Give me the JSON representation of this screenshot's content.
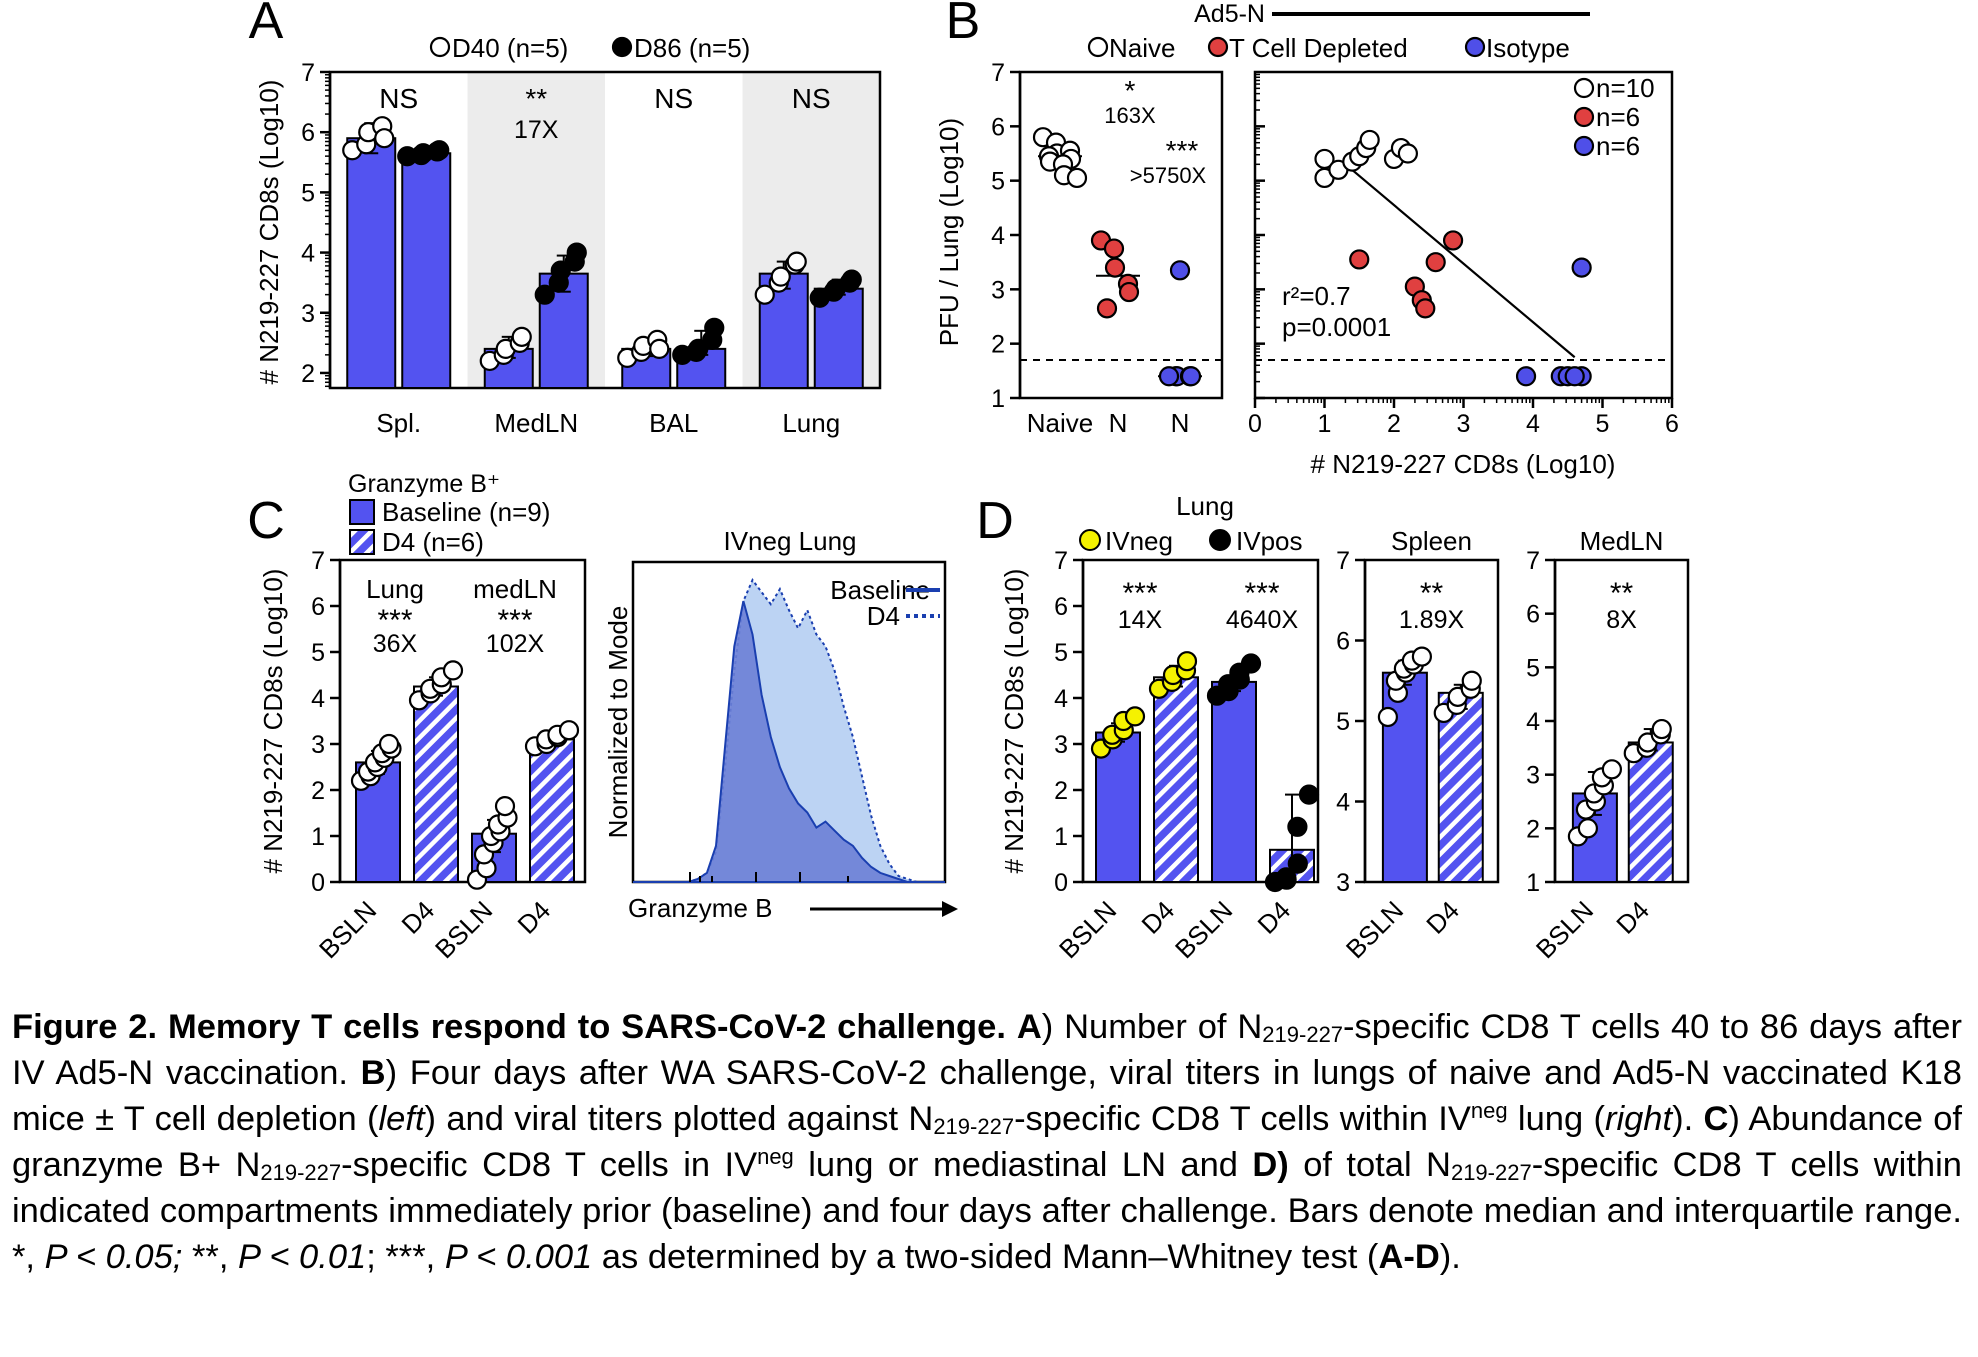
{
  "colors": {
    "bar": "#5353f0",
    "yellow": "#f5f200",
    "red": "#e04040",
    "blue": "#4f4fe8",
    "shade": "#ececec",
    "hist_base": "#6b7fd6",
    "hist_d4": "#bcd3f3",
    "line": "#1a3fb0"
  },
  "chart_data": [
    {
      "panel": "A",
      "type": "bar",
      "legend": [
        "D40 (n=5)",
        "D86 (n=5)"
      ],
      "ylabel": "# N219-227 CD8s (Log10)",
      "ylim": [
        1.75,
        7
      ],
      "yticks": [
        2,
        3,
        4,
        5,
        6,
        7
      ],
      "categories": [
        "Spl.",
        "MedLN",
        "BAL",
        "Lung"
      ],
      "annotations": [
        [
          "NS",
          ""
        ],
        [
          "**",
          "17X"
        ],
        [
          "NS",
          ""
        ],
        [
          "NS",
          ""
        ]
      ],
      "series": [
        {
          "name": "D40 (n=5)",
          "values": [
            5.9,
            2.4,
            2.4,
            3.65
          ],
          "errlow": [
            5.65,
            2.25,
            2.28,
            3.4
          ],
          "errhigh": [
            6.15,
            2.6,
            2.55,
            3.85
          ],
          "points": [
            [
              5.7,
              5.8,
              6.0,
              6.1,
              5.9
            ],
            [
              2.2,
              2.3,
              2.4,
              2.5,
              2.6
            ],
            [
              2.25,
              2.35,
              2.45,
              2.55,
              2.4
            ],
            [
              3.3,
              3.5,
              3.6,
              3.8,
              3.85
            ]
          ]
        },
        {
          "name": "D86 (n=5)",
          "values": [
            5.65,
            3.65,
            2.4,
            3.4
          ],
          "errlow": [
            5.6,
            3.35,
            2.3,
            3.3
          ],
          "errhigh": [
            5.7,
            3.95,
            2.7,
            3.55
          ],
          "points": [
            [
              5.6,
              5.62,
              5.65,
              5.68,
              5.7
            ],
            [
              3.3,
              3.5,
              3.7,
              3.85,
              4.0
            ],
            [
              2.3,
              2.35,
              2.4,
              2.55,
              2.75
            ],
            [
              3.25,
              3.35,
              3.4,
              3.5,
              3.55
            ]
          ]
        }
      ]
    },
    {
      "panel": "B-left",
      "type": "scatter",
      "header": "Ad5-N",
      "legend": [
        "Naive",
        "T Cell Depleted",
        "Isotype"
      ],
      "ylabel": "PFU / Lung (Log10)",
      "ylim": [
        1,
        7
      ],
      "yticks": [
        1,
        2,
        3,
        4,
        5,
        6,
        7
      ],
      "categories": [
        "Naive",
        "N",
        "N"
      ],
      "threshold": 1.7,
      "annotations": [
        [
          "*",
          "163X"
        ],
        [
          "***",
          ">5750X"
        ]
      ],
      "groups": [
        {
          "name": "Naive",
          "median": 5.45,
          "points": [
            5.8,
            5.7,
            5.5,
            5.55,
            5.4,
            5.45,
            5.35,
            5.3,
            5.1,
            5.05
          ]
        },
        {
          "name": "T Cell Depleted",
          "median": 3.25,
          "points": [
            3.9,
            3.75,
            3.4,
            3.1,
            2.95,
            2.65
          ]
        },
        {
          "name": "Isotype",
          "median": 1.4,
          "points": [
            3.35,
            1.4,
            1.4,
            1.4,
            1.4,
            1.4
          ]
        }
      ]
    },
    {
      "panel": "B-right",
      "type": "scatter",
      "xlabel": "# N219-227 CD8s (Log10)",
      "xlim": [
        0,
        6
      ],
      "ylim": [
        1,
        7
      ],
      "xticks": [
        0,
        1,
        2,
        3,
        4,
        5,
        6
      ],
      "threshold": 1.7,
      "stats": [
        "r²=0.7",
        "p=0.0001"
      ],
      "legend": [
        "n=10",
        "n=6",
        "n=6"
      ],
      "fit": [
        [
          1.35,
          5.25
        ],
        [
          4.6,
          1.75
        ]
      ],
      "series": [
        {
          "name": "Naive",
          "points": [
            [
              1.0,
              5.05
            ],
            [
              1.0,
              5.4
            ],
            [
              1.2,
              5.2
            ],
            [
              1.4,
              5.35
            ],
            [
              1.5,
              5.45
            ],
            [
              1.6,
              5.6
            ],
            [
              1.65,
              5.75
            ],
            [
              2.0,
              5.4
            ],
            [
              2.1,
              5.6
            ],
            [
              2.2,
              5.5
            ]
          ]
        },
        {
          "name": "T Cell Depleted",
          "points": [
            [
              1.5,
              3.55
            ],
            [
              2.3,
              3.05
            ],
            [
              2.4,
              2.8
            ],
            [
              2.45,
              2.65
            ],
            [
              2.6,
              3.5
            ],
            [
              2.85,
              3.9
            ]
          ]
        },
        {
          "name": "Isotype",
          "points": [
            [
              3.9,
              1.4
            ],
            [
              4.4,
              1.4
            ],
            [
              4.5,
              1.4
            ],
            [
              4.7,
              1.4
            ],
            [
              4.7,
              3.4
            ],
            [
              4.6,
              1.4
            ]
          ]
        }
      ]
    },
    {
      "panel": "C-left",
      "type": "bar",
      "legend_title": "Granzyme B⁺",
      "legend": [
        "Baseline (n=9)",
        "D4 (n=6)"
      ],
      "ylabel": "# N219-227 CD8s (Log10)",
      "ylim": [
        0,
        7
      ],
      "yticks": [
        0,
        1,
        2,
        3,
        4,
        5,
        6,
        7
      ],
      "categories": [
        "BSLN",
        "D4",
        "BSLN",
        "D4"
      ],
      "annotations": [
        [
          "Lung",
          "***",
          "36X"
        ],
        [
          "medLN",
          "***",
          "102X"
        ]
      ],
      "bars": [
        {
          "value": 2.6,
          "errlow": 2.35,
          "errhigh": 2.85,
          "hatched": false,
          "points": [
            2.2,
            2.3,
            2.4,
            2.5,
            2.6,
            2.7,
            2.8,
            2.9,
            3.0
          ]
        },
        {
          "value": 4.25,
          "errlow": 4.05,
          "errhigh": 4.45,
          "hatched": true,
          "points": [
            3.95,
            4.1,
            4.2,
            4.3,
            4.45,
            4.6
          ]
        },
        {
          "value": 1.05,
          "errlow": 0.65,
          "errhigh": 1.35,
          "hatched": false,
          "points": [
            0.05,
            0.3,
            0.6,
            0.85,
            1.0,
            1.1,
            1.25,
            1.4,
            1.65
          ]
        },
        {
          "value": 3.1,
          "errlow": 2.95,
          "errhigh": 3.25,
          "hatched": true,
          "points": [
            2.95,
            3.0,
            3.1,
            3.15,
            3.2,
            3.3
          ]
        }
      ]
    },
    {
      "panel": "C-right",
      "type": "area",
      "title": "IVneg Lung",
      "ylabel": "Normalized to Mode",
      "xlabel": "Granzyme B",
      "legend": [
        "Baseline",
        "D4"
      ],
      "series": [
        {
          "name": "Baseline",
          "values": [
            0,
            0,
            0,
            0,
            0,
            0,
            0.01,
            0.03,
            0.12,
            0.45,
            0.78,
            0.93,
            0.82,
            0.62,
            0.48,
            0.38,
            0.31,
            0.26,
            0.23,
            0.18,
            0.2,
            0.17,
            0.14,
            0.12,
            0.08,
            0.05,
            0.03,
            0.02,
            0.01,
            0,
            0,
            0,
            0
          ]
        },
        {
          "name": "D4",
          "values": [
            0,
            0,
            0,
            0,
            0,
            0,
            0.01,
            0.03,
            0.1,
            0.38,
            0.7,
            0.93,
            1.0,
            0.96,
            0.92,
            0.97,
            0.9,
            0.84,
            0.9,
            0.82,
            0.78,
            0.7,
            0.58,
            0.48,
            0.35,
            0.22,
            0.12,
            0.06,
            0.02,
            0.01,
            0,
            0,
            0
          ]
        }
      ]
    },
    {
      "panel": "D-left",
      "type": "bar",
      "title": "Lung",
      "legend": [
        "IVneg",
        "IVpos"
      ],
      "ylabel": "# N219-227 CD8s (Log10)",
      "ylim": [
        0,
        7
      ],
      "yticks": [
        0,
        1,
        2,
        3,
        4,
        5,
        6,
        7
      ],
      "categories": [
        "BSLN",
        "D4",
        "BSLN",
        "D4"
      ],
      "annotations": [
        [
          "***",
          "14X"
        ],
        [
          "***",
          "4640X"
        ]
      ],
      "bars": [
        {
          "value": 3.25,
          "errlow": 3.05,
          "errhigh": 3.45,
          "hatched": false,
          "dot": "yellow",
          "points": [
            2.9,
            3.1,
            3.2,
            3.3,
            3.5,
            3.6
          ]
        },
        {
          "value": 4.45,
          "errlow": 4.25,
          "errhigh": 4.7,
          "hatched": true,
          "dot": "yellow",
          "points": [
            4.2,
            4.35,
            4.5,
            4.6,
            4.8
          ]
        },
        {
          "value": 4.35,
          "errlow": 4.15,
          "errhigh": 4.45,
          "hatched": false,
          "dot": "black",
          "points": [
            4.05,
            4.15,
            4.3,
            4.4,
            4.55,
            4.75
          ]
        },
        {
          "value": 0.7,
          "errlow": 0.0,
          "errhigh": 1.9,
          "hatched": true,
          "dot": "black",
          "points": [
            0.0,
            0.05,
            0.1,
            0.4,
            1.2,
            1.9
          ]
        }
      ]
    },
    {
      "panel": "D-mid",
      "type": "bar",
      "title": "Spleen",
      "ylim": [
        3,
        7
      ],
      "yticks": [
        3,
        4,
        5,
        6,
        7
      ],
      "categories": [
        "BSLN",
        "D4"
      ],
      "annotations": [
        [
          "**",
          "1.89X"
        ]
      ],
      "bars": [
        {
          "value": 5.6,
          "errlow": 5.45,
          "errhigh": 5.75,
          "hatched": false,
          "points": [
            5.05,
            5.35,
            5.5,
            5.6,
            5.65,
            5.7,
            5.75,
            5.8
          ]
        },
        {
          "value": 5.35,
          "errlow": 5.15,
          "errhigh": 5.45,
          "hatched": true,
          "points": [
            5.1,
            5.2,
            5.3,
            5.4,
            5.5
          ]
        }
      ]
    },
    {
      "panel": "D-right",
      "type": "bar",
      "title": "MedLN",
      "ylim": [
        1,
        7
      ],
      "yticks": [
        1,
        2,
        3,
        4,
        5,
        6,
        7
      ],
      "categories": [
        "BSLN",
        "D4"
      ],
      "annotations": [
        [
          "**",
          "8X"
        ]
      ],
      "bars": [
        {
          "value": 2.65,
          "errlow": 2.25,
          "errhigh": 3.05,
          "hatched": false,
          "points": [
            1.85,
            2.0,
            2.35,
            2.5,
            2.65,
            2.8,
            2.95,
            3.1
          ]
        },
        {
          "value": 3.6,
          "errlow": 3.45,
          "errhigh": 3.85,
          "hatched": true,
          "points": [
            3.4,
            3.5,
            3.6,
            3.75,
            3.85
          ]
        }
      ]
    }
  ],
  "panel_letters": [
    "A",
    "B",
    "C",
    "D"
  ],
  "caption": {
    "title": "Figure 2. Memory T cells respond to SARS-CoV-2 challenge.",
    "a_label": "A",
    "a_text_1": ") Number of N",
    "sub": "219-227",
    "a_text_2": "-specific CD8 T cells 40 to 86 days after IV Ad5-N vaccination. ",
    "b_label": "B",
    "b_text_1": ") Four days after WA SARS-CoV-2 challenge, viral titers in lungs of naive and Ad5-N vaccinated K18 mice ± T cell depletion (",
    "left": "left",
    "b_text_2": ") and viral titers plotted against N",
    "b_text_3": "-specific CD8 T cells within IV",
    "sup": "neg",
    "b_text_4": " lung (",
    "right": "right",
    "b_text_5": "). ",
    "c_label": "C",
    "c_text_1": ") Abundance of granzyme B+ N",
    "c_text_2": "-specific CD8 T cells in IV",
    "c_text_3": " lung or mediastinal LN and ",
    "d_label": "D)",
    "d_text_1": " of total N",
    "d_text_2": "-specific CD8 T cells within indicated compartments immediately prior (baseline) and four days after challenge. Bars denote median and interquartile range. *, ",
    "p1": "P < 0.05;",
    "t1": " **, ",
    "p2": "P < 0.01",
    "t2": "; ***, ",
    "p3": "P < 0.001",
    "t3": " as determined by a two-sided Mann–Whitney test (",
    "ad": "A-D",
    "t4": ")."
  }
}
